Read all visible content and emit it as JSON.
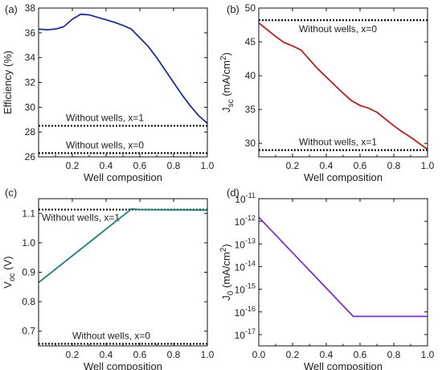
{
  "chart_data": [
    {
      "type": "line",
      "panel": "(a)",
      "xlabel": "Well composition",
      "ylabel": "Efficiency (%)",
      "xlim": [
        0,
        1.0
      ],
      "ylim": [
        26,
        38
      ],
      "xticks": [
        0.2,
        0.4,
        0.6,
        0.8,
        1.0
      ],
      "xtick_labels": [
        "0.2",
        "0.4",
        "0.6",
        "0.8",
        "1.0"
      ],
      "yticks": [
        26,
        28,
        30,
        32,
        34,
        36,
        38
      ],
      "ytick_labels": [
        "26",
        "28",
        "30",
        "32",
        "34",
        "36",
        "38"
      ],
      "series": [
        {
          "color": "#1f2f8f",
          "x": [
            0.0,
            0.05,
            0.1,
            0.15,
            0.2,
            0.25,
            0.3,
            0.35,
            0.4,
            0.45,
            0.5,
            0.55,
            0.6,
            0.65,
            0.7,
            0.75,
            0.8,
            0.85,
            0.9,
            0.95,
            1.0
          ],
          "y": [
            36.3,
            36.25,
            36.3,
            36.5,
            37.1,
            37.5,
            37.45,
            37.25,
            37.05,
            36.85,
            36.6,
            36.3,
            35.6,
            34.9,
            34.0,
            33.0,
            32.0,
            31.0,
            30.1,
            29.3,
            28.7
          ]
        }
      ],
      "reference_lines": [
        {
          "y": 28.5,
          "label": "Without wells, x=1"
        },
        {
          "y": 26.3,
          "label": "Without wells, x=0"
        }
      ]
    },
    {
      "type": "line",
      "panel": "(b)",
      "xlabel": "Well composition",
      "ylabel_main": "J",
      "ylabel_sub": "sc",
      "ylabel_rest": " (mA/cm",
      "ylabel_sup": "2",
      "ylabel_end": ")",
      "xlim": [
        0,
        1.0
      ],
      "ylim": [
        28,
        50
      ],
      "xticks": [
        0.2,
        0.4,
        0.6,
        0.8,
        1.0
      ],
      "xtick_labels": [
        "0.2",
        "0.4",
        "0.6",
        "0.8",
        "1.0"
      ],
      "yticks": [
        30,
        35,
        40,
        45,
        50
      ],
      "ytick_labels": [
        "30",
        "35",
        "40",
        "45",
        "50"
      ],
      "series": [
        {
          "color": "#b22020",
          "x": [
            0.0,
            0.05,
            0.1,
            0.15,
            0.2,
            0.25,
            0.3,
            0.35,
            0.4,
            0.45,
            0.5,
            0.55,
            0.6,
            0.65,
            0.7,
            0.75,
            0.8,
            0.85,
            0.9,
            0.95,
            1.0
          ],
          "y": [
            47.8,
            46.8,
            45.8,
            44.9,
            44.4,
            43.8,
            42.4,
            41.0,
            39.8,
            38.6,
            37.4,
            36.3,
            35.6,
            35.2,
            34.6,
            33.6,
            32.6,
            31.7,
            30.9,
            30.0,
            29.1
          ]
        }
      ],
      "reference_lines": [
        {
          "y": 48.2,
          "label": "Without wells, x=0"
        },
        {
          "y": 29.0,
          "label": "Without wells, x=1"
        }
      ]
    },
    {
      "type": "line",
      "panel": "(c)",
      "xlabel": "Well composition",
      "ylabel_main": "V",
      "ylabel_sub": "oc",
      "ylabel_rest": " (V)",
      "xlim": [
        0,
        1.0
      ],
      "ylim": [
        0.65,
        1.15
      ],
      "xticks": [
        0.2,
        0.4,
        0.6,
        0.8,
        1.0
      ],
      "xtick_labels": [
        "0.2",
        "0.4",
        "0.6",
        "0.8",
        "1.0"
      ],
      "yticks": [
        0.7,
        0.8,
        0.9,
        1.0,
        1.1
      ],
      "ytick_labels": [
        "0.7",
        "0.8",
        "0.9",
        "1.0",
        "1.1"
      ],
      "series": [
        {
          "color": "#1f7f7a",
          "x": [
            0.0,
            0.55,
            0.6,
            1.0
          ],
          "y": [
            0.865,
            1.115,
            1.113,
            1.111
          ]
        }
      ],
      "reference_lines": [
        {
          "y": 1.113,
          "label": "Without wells, x=1"
        },
        {
          "y": 0.657,
          "label": "Without wells, x=0"
        }
      ]
    },
    {
      "type": "line",
      "panel": "(d)",
      "xlabel": "Well composition",
      "ylabel_main": "J",
      "ylabel_sub": "0",
      "ylabel_rest": " (mA/cm",
      "ylabel_sup": "2",
      "ylabel_end": ")",
      "yscale": "log",
      "xlim": [
        0,
        1.0
      ],
      "ylim": [
        -17.5,
        -11
      ],
      "xticks": [
        0.0,
        0.2,
        0.4,
        0.6,
        0.8,
        1.0
      ],
      "xtick_labels": [
        "0.0",
        "0.2",
        "0.4",
        "0.6",
        "0.8",
        "1.0"
      ],
      "yticks": [
        -17,
        -16,
        -15,
        -14,
        -13,
        -12,
        -11
      ],
      "ytick_labels": [
        "-17",
        "-16",
        "-15",
        "-14",
        "-13",
        "-12",
        "-11"
      ],
      "ytick_base": "10",
      "series": [
        {
          "color": "#7b2fc9",
          "x": [
            0.0,
            0.56,
            1.0
          ],
          "y": [
            -11.82,
            -16.2,
            -16.2
          ]
        }
      ],
      "reference_lines": []
    }
  ]
}
